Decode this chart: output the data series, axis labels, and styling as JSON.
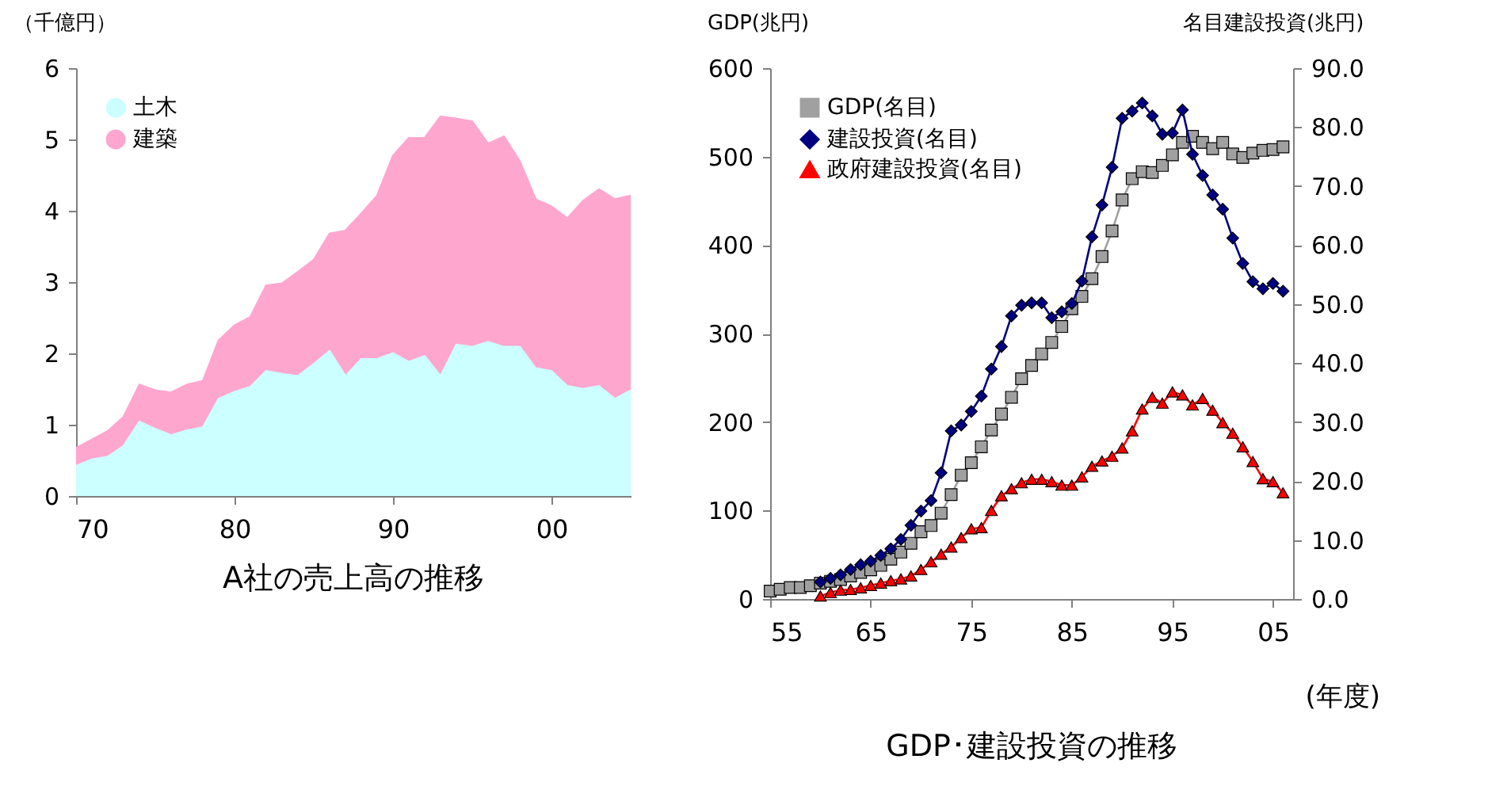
{
  "chart_data": [
    {
      "type": "area",
      "title": "A社の売上高の推移",
      "ylabel": "（千億円）",
      "stacked": true,
      "legend": "top left",
      "grid": false,
      "x": [
        1970,
        1971,
        1972,
        1973,
        1974,
        1975,
        1976,
        1977,
        1978,
        1979,
        1980,
        1981,
        1982,
        1983,
        1984,
        1985,
        1986,
        1987,
        1988,
        1989,
        1990,
        1991,
        1992,
        1993,
        1994,
        1995,
        1996,
        1997,
        1998,
        1999,
        2000,
        2001,
        2002,
        2003,
        2004,
        2005
      ],
      "xlim": [
        1970,
        2005
      ],
      "xticks": [
        {
          "value": 1970,
          "label": "70"
        },
        {
          "value": 1980,
          "label": "80"
        },
        {
          "value": 1990,
          "label": "90"
        },
        {
          "value": 2000,
          "label": "00"
        }
      ],
      "ylim": [
        0,
        6
      ],
      "yticks": [
        0,
        1,
        2,
        3,
        4,
        5,
        6
      ],
      "series": [
        {
          "name": "土木",
          "color": "#ccffff",
          "values": [
            0.42,
            0.51,
            0.55,
            0.7,
            1.04,
            0.94,
            0.85,
            0.92,
            0.96,
            1.36,
            1.46,
            1.53,
            1.75,
            1.71,
            1.68,
            1.85,
            2.03,
            1.68,
            1.92,
            1.92,
            2.0,
            1.88,
            1.96,
            1.68,
            2.12,
            2.09,
            2.16,
            2.09,
            2.09,
            1.79,
            1.75,
            1.54,
            1.5,
            1.54,
            1.36,
            1.48
          ]
        },
        {
          "name": "建築",
          "color": "#ffa6cf",
          "values": [
            0.25,
            0.28,
            0.36,
            0.41,
            0.52,
            0.54,
            0.6,
            0.64,
            0.65,
            0.82,
            0.93,
            0.98,
            1.2,
            1.27,
            1.46,
            1.46,
            1.65,
            2.04,
            2.04,
            2.29,
            2.77,
            3.14,
            3.06,
            3.64,
            3.17,
            3.16,
            2.78,
            2.95,
            2.6,
            2.37,
            2.31,
            2.35,
            2.64,
            2.76,
            2.8,
            2.73
          ]
        }
      ]
    },
    {
      "type": "line",
      "title": "GDP･建設投資の推移",
      "ylabel": "GDP(兆円)",
      "y2label": "名目建設投資(兆円)",
      "legend": "top left",
      "grid": false,
      "annotations": [
        "(年度)"
      ],
      "xlim": [
        1955,
        2007
      ],
      "xticks": [
        {
          "value": 1955,
          "label": "55"
        },
        {
          "value": 1965,
          "label": "65"
        },
        {
          "value": 1975,
          "label": "75"
        },
        {
          "value": 1985,
          "label": "85"
        },
        {
          "value": 1995,
          "label": "95"
        },
        {
          "value": 2005,
          "label": "05"
        }
      ],
      "ylim": [
        0,
        600
      ],
      "yticks": [
        0,
        100,
        200,
        300,
        400,
        500,
        600
      ],
      "y2lim": [
        0,
        90
      ],
      "y2ticks": [
        {
          "value": 0,
          "label": "0.0"
        },
        {
          "value": 10,
          "label": "10.0"
        },
        {
          "value": 20,
          "label": "20.0"
        },
        {
          "value": 30,
          "label": "30.0"
        },
        {
          "value": 40,
          "label": "40.0"
        },
        {
          "value": 50,
          "label": "50.0"
        },
        {
          "value": 60,
          "label": "60.0"
        },
        {
          "value": 70,
          "label": "70.0"
        },
        {
          "value": 80,
          "label": "80.0"
        },
        {
          "value": 90,
          "label": "90.0"
        }
      ],
      "series": [
        {
          "name": "GDP(名目)",
          "color": "#a0a0a0",
          "marker": "square",
          "x": [
            1955,
            1956,
            1957,
            1958,
            1959,
            1960,
            1961,
            1962,
            1963,
            1964,
            1965,
            1966,
            1967,
            1968,
            1969,
            1970,
            1971,
            1972,
            1973,
            1974,
            1975,
            1976,
            1977,
            1978,
            1979,
            1980,
            1981,
            1982,
            1983,
            1984,
            1985,
            1986,
            1987,
            1988,
            1989,
            1990,
            1991,
            1992,
            1993,
            1994,
            1995,
            1996,
            1997,
            1998,
            1999,
            2000,
            2001,
            2002,
            2003,
            2004,
            2005,
            2006
          ],
          "values": [
            9,
            11,
            13,
            13,
            15,
            18,
            20,
            22,
            26,
            30,
            33,
            38,
            45,
            53,
            63,
            76,
            83,
            97,
            118,
            140,
            154,
            172,
            191,
            209,
            228,
            249,
            264,
            277,
            290,
            308,
            328,
            342,
            362,
            387,
            416,
            451,
            475,
            483,
            482,
            490,
            502,
            516,
            523,
            516,
            509,
            516,
            503,
            499,
            504,
            507,
            508,
            511
          ]
        },
        {
          "name": "建設投資(名目)",
          "color": "#000080",
          "marker": "diamond",
          "axis": "y2",
          "x": [
            1960,
            1961,
            1962,
            1963,
            1964,
            1965,
            1966,
            1967,
            1968,
            1969,
            1970,
            1971,
            1972,
            1973,
            1974,
            1975,
            1976,
            1977,
            1978,
            1979,
            1980,
            1981,
            1982,
            1983,
            1984,
            1985,
            1986,
            1987,
            1988,
            1989,
            1990,
            1991,
            1992,
            1993,
            1994,
            1995,
            1996,
            1997,
            1998,
            1999,
            2000,
            2001,
            2002,
            2003,
            2004,
            2005,
            2006
          ],
          "values": [
            2.9,
            3.5,
            4.1,
            5.0,
            5.8,
            6.4,
            7.4,
            8.5,
            10.1,
            12.5,
            14.9,
            16.7,
            21.4,
            28.5,
            29.5,
            31.8,
            34.4,
            39.0,
            42.8,
            48.0,
            49.8,
            50.2,
            50.2,
            47.7,
            48.7,
            50.1,
            53.9,
            61.4,
            66.8,
            73.2,
            81.5,
            82.7,
            84.1,
            81.9,
            78.8,
            79.0,
            82.9,
            75.4,
            71.8,
            68.5,
            66.1,
            61.2,
            56.9,
            53.8,
            52.6,
            53.5,
            52.2
          ]
        },
        {
          "name": "政府建設投資(名目)",
          "color": "#ff0000",
          "marker": "triangle",
          "axis": "y2",
          "x": [
            1960,
            1961,
            1962,
            1963,
            1964,
            1965,
            1966,
            1967,
            1968,
            1969,
            1970,
            1971,
            1972,
            1973,
            1974,
            1975,
            1976,
            1977,
            1978,
            1979,
            1980,
            1981,
            1982,
            1983,
            1984,
            1985,
            1986,
            1987,
            1988,
            1989,
            1990,
            1991,
            1992,
            1993,
            1994,
            1995,
            1996,
            1997,
            1998,
            1999,
            2000,
            2001,
            2002,
            2003,
            2004,
            2005,
            2006
          ],
          "values": [
            0.5,
            1.1,
            1.5,
            1.6,
            1.9,
            2.3,
            2.7,
            3.1,
            3.4,
            3.9,
            5.0,
            6.3,
            7.6,
            8.8,
            10.4,
            11.9,
            12.1,
            15.0,
            17.5,
            18.7,
            19.7,
            20.3,
            20.3,
            19.9,
            19.3,
            19.3,
            20.7,
            22.5,
            23.4,
            24.2,
            25.6,
            28.5,
            32.2,
            34.2,
            33.2,
            35.1,
            34.6,
            32.9,
            34.0,
            32.0,
            29.9,
            28.1,
            25.8,
            23.3,
            20.4,
            19.9,
            18.0
          ]
        }
      ]
    }
  ]
}
